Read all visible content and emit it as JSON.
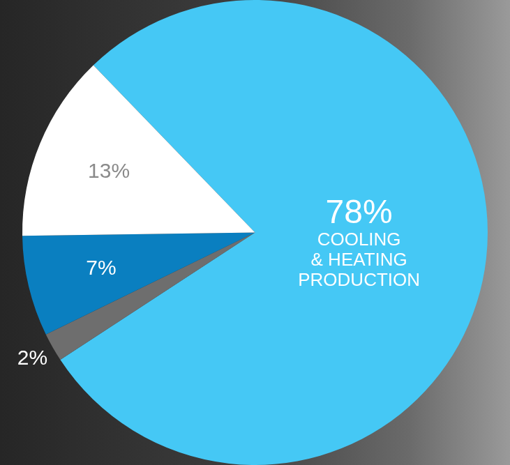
{
  "chart_data": {
    "type": "pie",
    "categories": [
      "COOLING & HEATING PRODUCTION",
      null,
      null,
      null
    ],
    "values": [
      78,
      2,
      7,
      13
    ],
    "value_labels": [
      "78%",
      "2%",
      "7%",
      "13%"
    ],
    "colors": [
      "#45c8f5",
      "#6e6e6e",
      "#0a7fc0",
      "#ffffff"
    ],
    "data_labels": true
  }
}
